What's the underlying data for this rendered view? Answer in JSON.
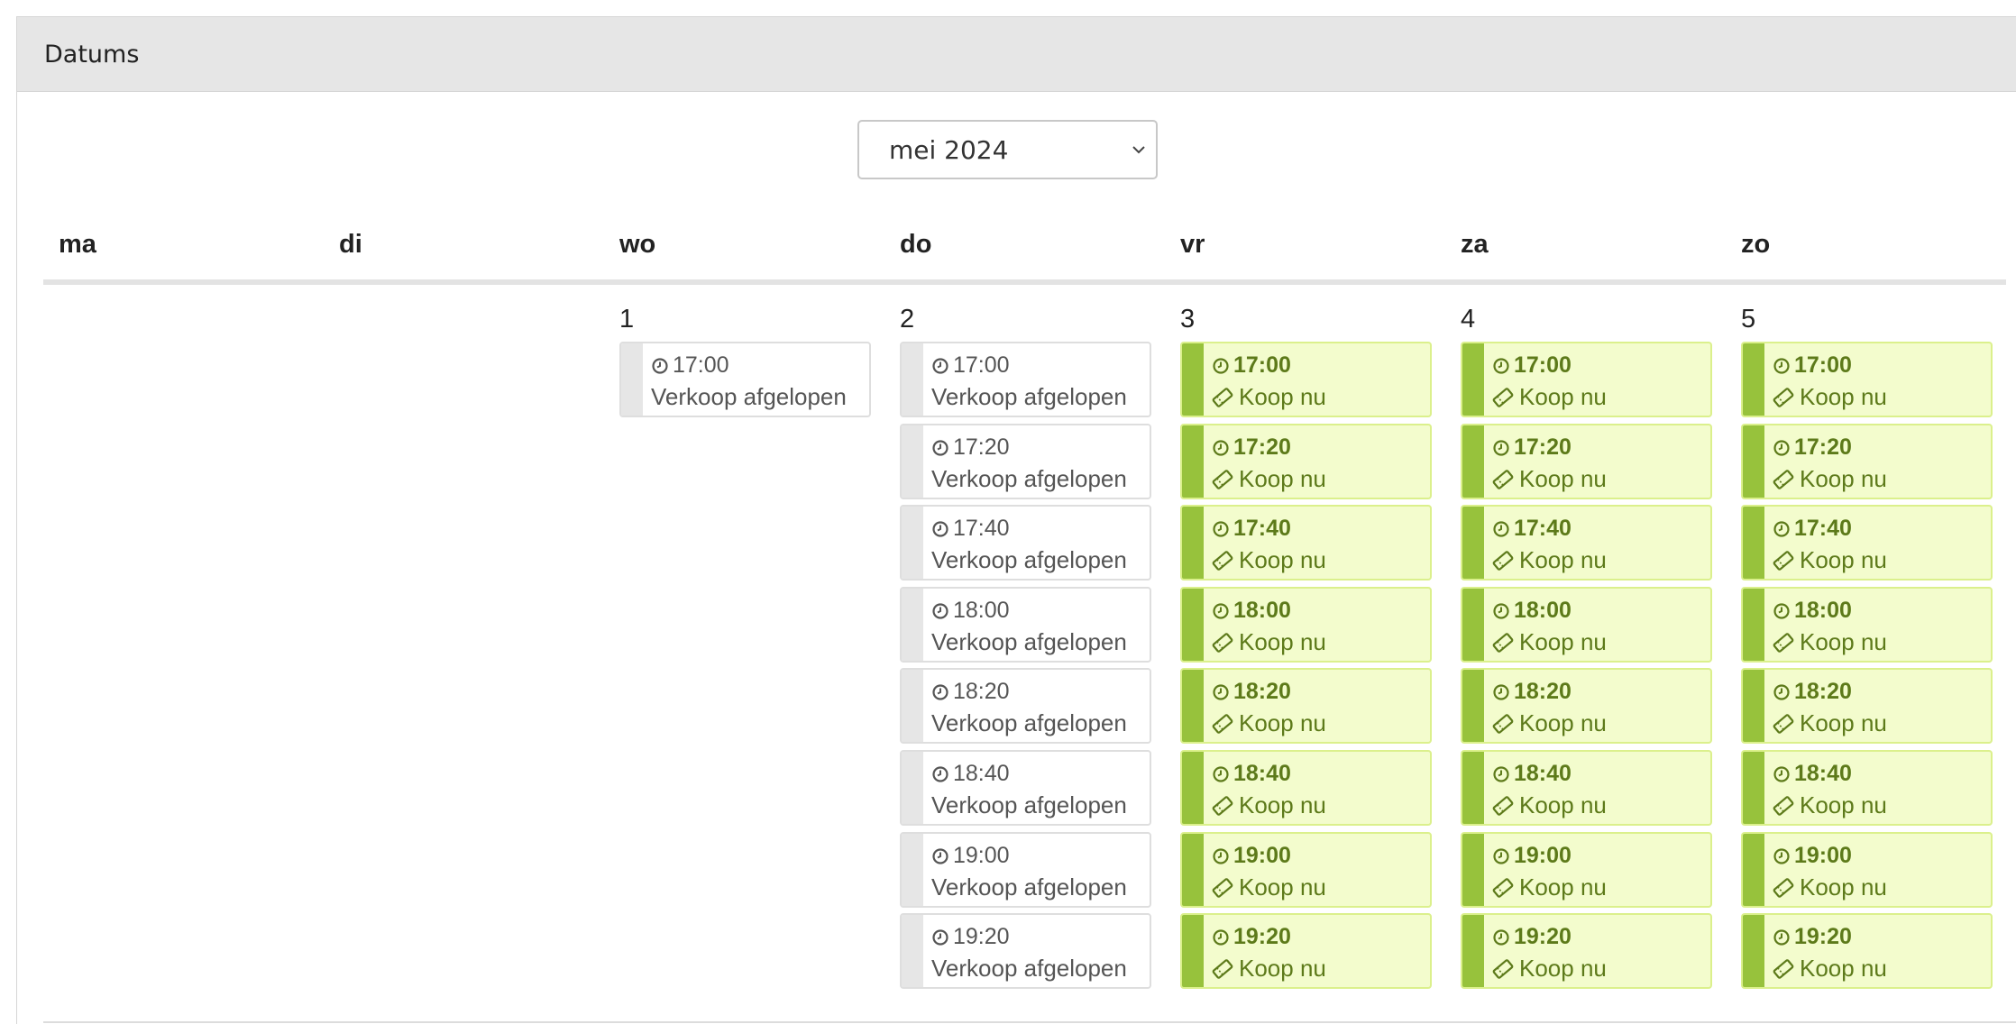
{
  "panel": {
    "title": "Datums"
  },
  "month_select": {
    "value": "mei 2024"
  },
  "weekdays": [
    "ma",
    "di",
    "wo",
    "do",
    "vr",
    "za",
    "zo"
  ],
  "days": [
    {
      "number": "1",
      "weekday_index": 2,
      "slots": [
        {
          "time": "17:00",
          "status": "Verkoop afgelopen",
          "available": false
        }
      ]
    },
    {
      "number": "2",
      "weekday_index": 3,
      "slots": [
        {
          "time": "17:00",
          "status": "Verkoop afgelopen",
          "available": false
        },
        {
          "time": "17:20",
          "status": "Verkoop afgelopen",
          "available": false
        },
        {
          "time": "17:40",
          "status": "Verkoop afgelopen",
          "available": false
        },
        {
          "time": "18:00",
          "status": "Verkoop afgelopen",
          "available": false
        },
        {
          "time": "18:20",
          "status": "Verkoop afgelopen",
          "available": false
        },
        {
          "time": "18:40",
          "status": "Verkoop afgelopen",
          "available": false
        },
        {
          "time": "19:00",
          "status": "Verkoop afgelopen",
          "available": false
        },
        {
          "time": "19:20",
          "status": "Verkoop afgelopen",
          "available": false
        }
      ]
    },
    {
      "number": "3",
      "weekday_index": 4,
      "slots": [
        {
          "time": "17:00",
          "status": "Koop nu",
          "available": true
        },
        {
          "time": "17:20",
          "status": "Koop nu",
          "available": true
        },
        {
          "time": "17:40",
          "status": "Koop nu",
          "available": true
        },
        {
          "time": "18:00",
          "status": "Koop nu",
          "available": true
        },
        {
          "time": "18:20",
          "status": "Koop nu",
          "available": true
        },
        {
          "time": "18:40",
          "status": "Koop nu",
          "available": true
        },
        {
          "time": "19:00",
          "status": "Koop nu",
          "available": true
        },
        {
          "time": "19:20",
          "status": "Koop nu",
          "available": true
        }
      ]
    },
    {
      "number": "4",
      "weekday_index": 5,
      "slots": [
        {
          "time": "17:00",
          "status": "Koop nu",
          "available": true
        },
        {
          "time": "17:20",
          "status": "Koop nu",
          "available": true
        },
        {
          "time": "17:40",
          "status": "Koop nu",
          "available": true
        },
        {
          "time": "18:00",
          "status": "Koop nu",
          "available": true
        },
        {
          "time": "18:20",
          "status": "Koop nu",
          "available": true
        },
        {
          "time": "18:40",
          "status": "Koop nu",
          "available": true
        },
        {
          "time": "19:00",
          "status": "Koop nu",
          "available": true
        },
        {
          "time": "19:20",
          "status": "Koop nu",
          "available": true
        }
      ]
    },
    {
      "number": "5",
      "weekday_index": 6,
      "slots": [
        {
          "time": "17:00",
          "status": "Koop nu",
          "available": true
        },
        {
          "time": "17:20",
          "status": "Koop nu",
          "available": true
        },
        {
          "time": "17:40",
          "status": "Koop nu",
          "available": true
        },
        {
          "time": "18:00",
          "status": "Koop nu",
          "available": true
        },
        {
          "time": "18:20",
          "status": "Koop nu",
          "available": true
        },
        {
          "time": "18:40",
          "status": "Koop nu",
          "available": true
        },
        {
          "time": "19:00",
          "status": "Koop nu",
          "available": true
        },
        {
          "time": "19:20",
          "status": "Koop nu",
          "available": true
        }
      ]
    }
  ],
  "icons": {
    "time": "clock-icon",
    "buy": "ticket-icon",
    "select": "chevron-down-icon"
  },
  "colors": {
    "available_bg": "#f3fccd",
    "available_accent": "#97c23c",
    "available_text": "#5d7a1a",
    "closed_accent": "#e6e6e6",
    "closed_text": "#555555",
    "heading_bg": "#e6e6e6"
  }
}
